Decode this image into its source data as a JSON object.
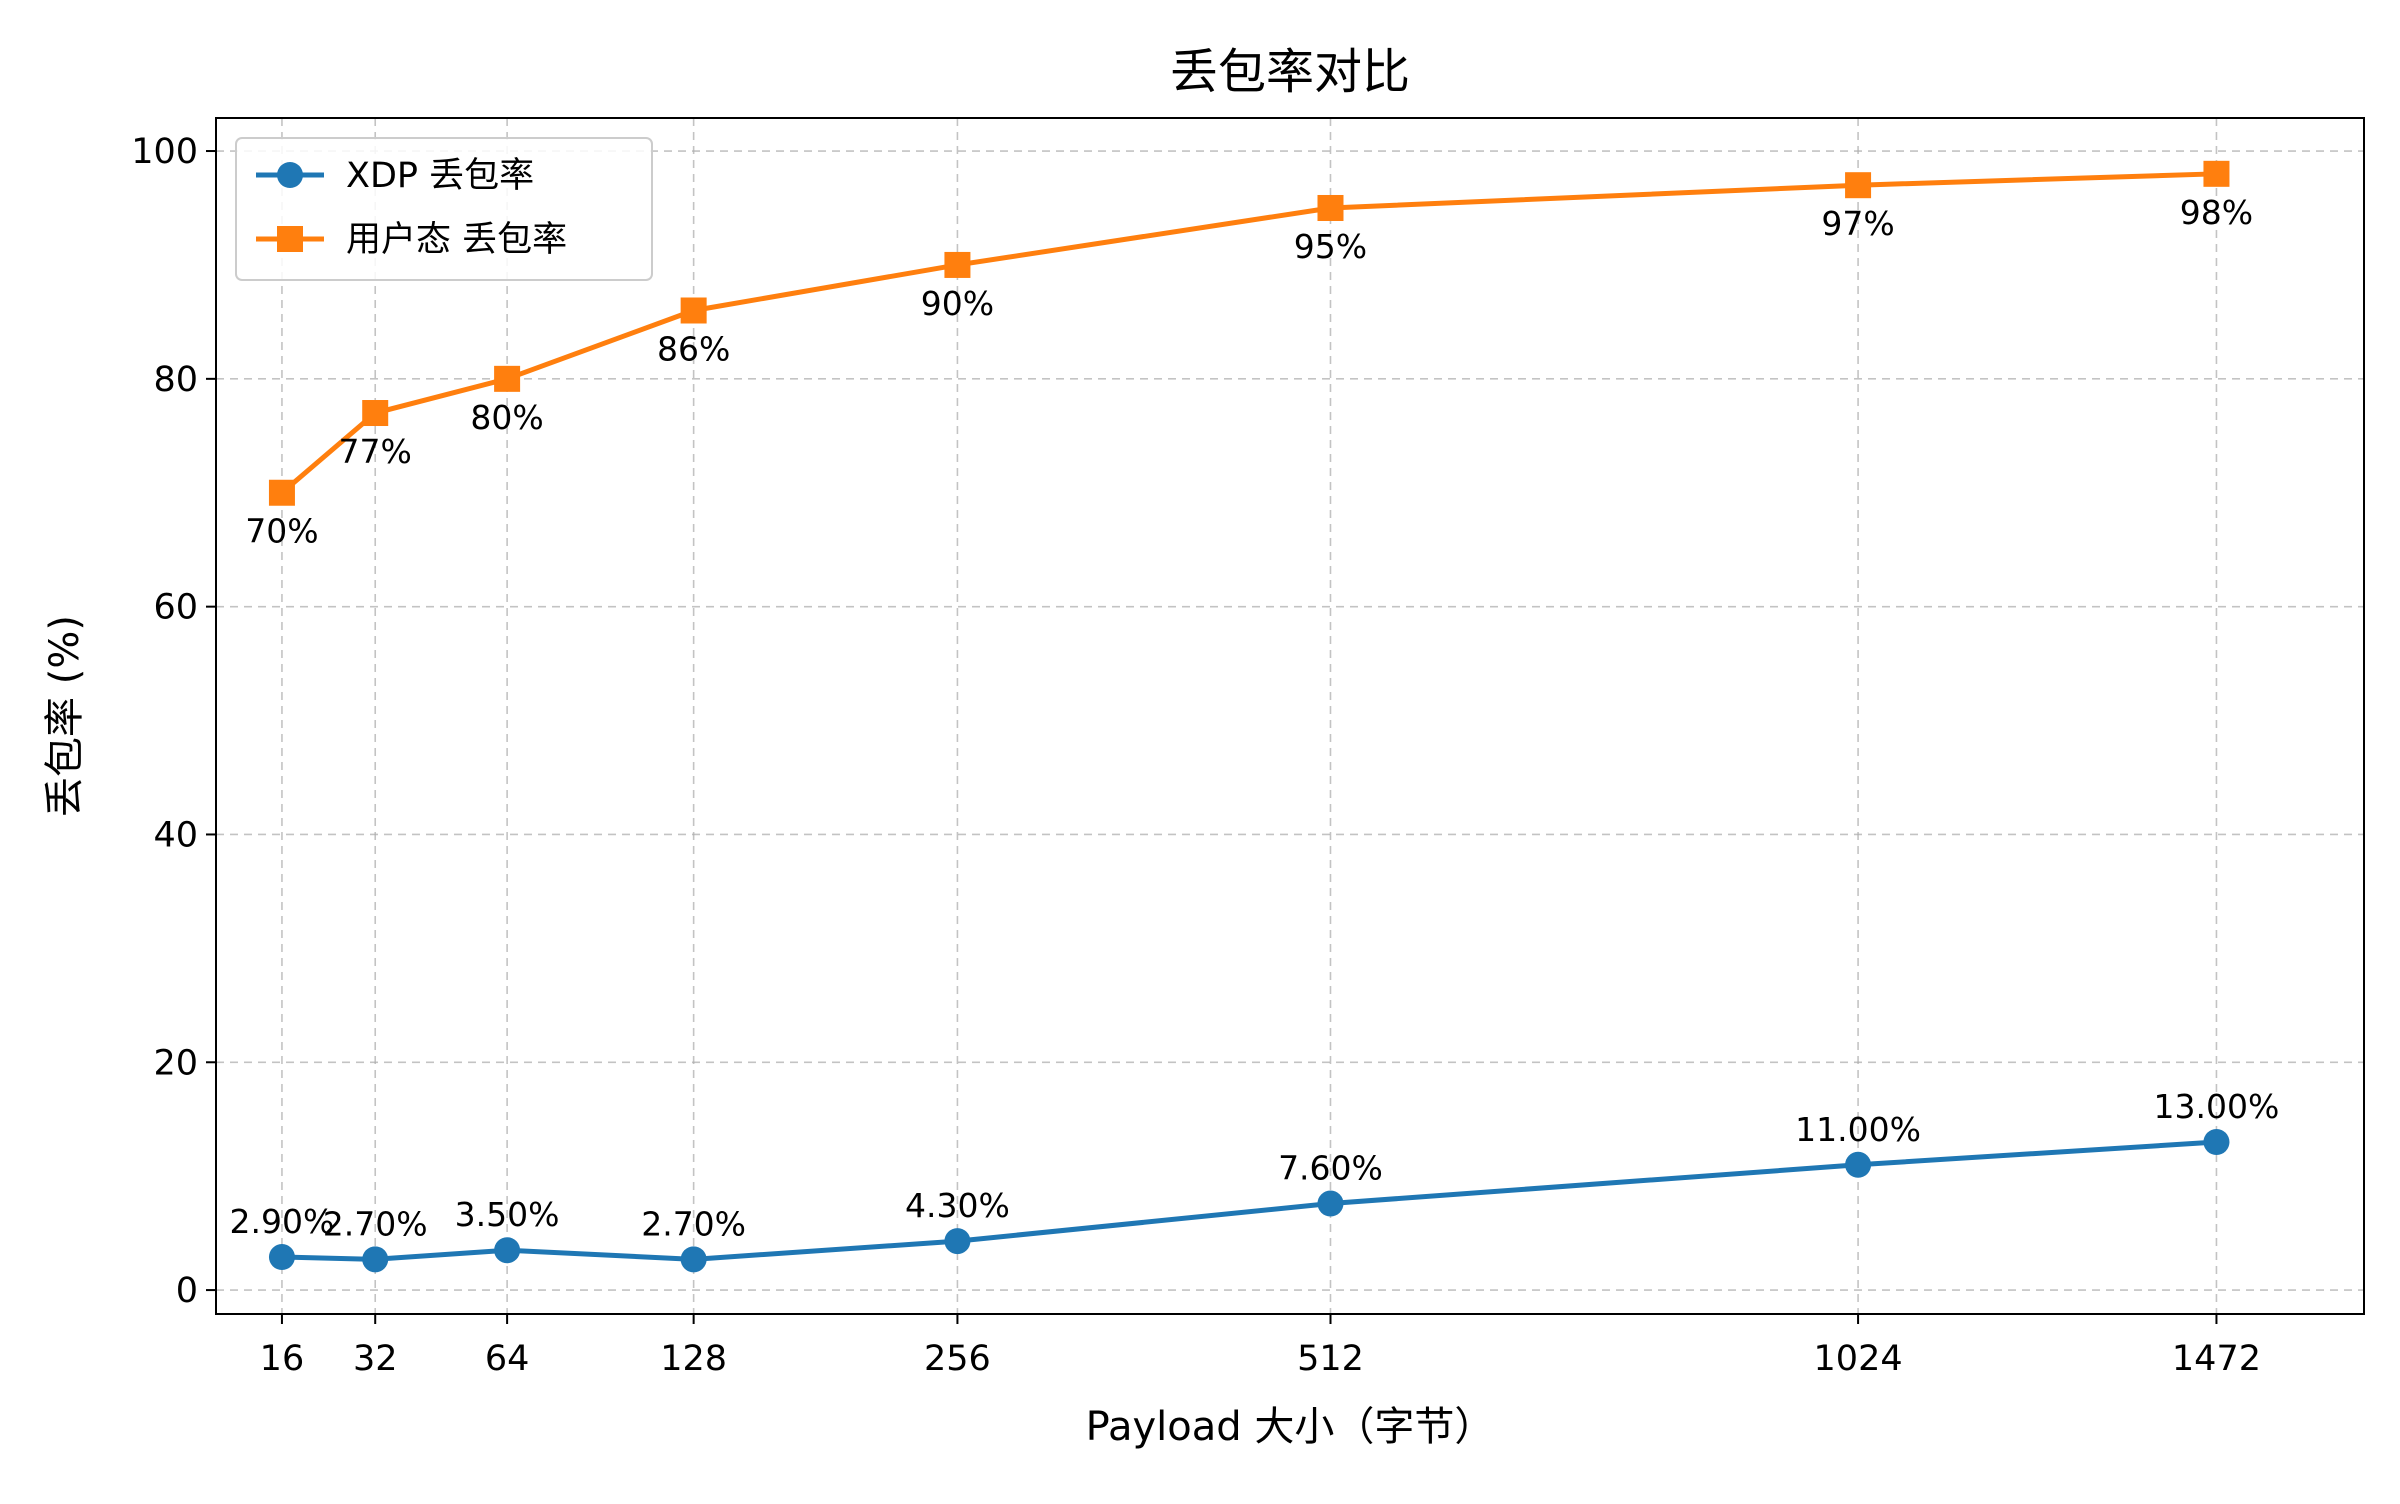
{
  "chart_data": {
    "type": "line",
    "title": "丢包率对比",
    "xlabel": "Payload 大小（字节）",
    "ylabel": "丢包率 (%)",
    "x_scale": "square-root",
    "x": [
      16,
      32,
      64,
      128,
      256,
      512,
      1024,
      1472
    ],
    "x_tick_labels": [
      "16",
      "32",
      "64",
      "128",
      "256",
      "512",
      "1024",
      "1472"
    ],
    "xlim": [
      8,
      1680
    ],
    "ylim": [
      -2.1,
      102.9
    ],
    "y_ticks": [
      0,
      20,
      40,
      60,
      80,
      100
    ],
    "y_tick_labels": [
      "0",
      "20",
      "40",
      "60",
      "80",
      "100"
    ],
    "grid": true,
    "legend_position": "upper-left",
    "series": [
      {
        "name": "XDP 丢包率",
        "color": "#1f77b4",
        "marker": "circle",
        "values": [
          2.9,
          2.7,
          3.5,
          2.7,
          4.3,
          7.6,
          11.0,
          13.0
        ],
        "point_labels": [
          "2.90%",
          "2.70%",
          "3.50%",
          "2.70%",
          "4.30%",
          "7.60%",
          "11.00%",
          "13.00%"
        ],
        "label_position": "above"
      },
      {
        "name": "用户态 丢包率",
        "color": "#ff7f0e",
        "marker": "square",
        "values": [
          70,
          77,
          80,
          86,
          90,
          95,
          97,
          98
        ],
        "point_labels": [
          "70%",
          "77%",
          "80%",
          "86%",
          "90%",
          "95%",
          "97%",
          "98%"
        ],
        "label_position": "below"
      }
    ]
  }
}
